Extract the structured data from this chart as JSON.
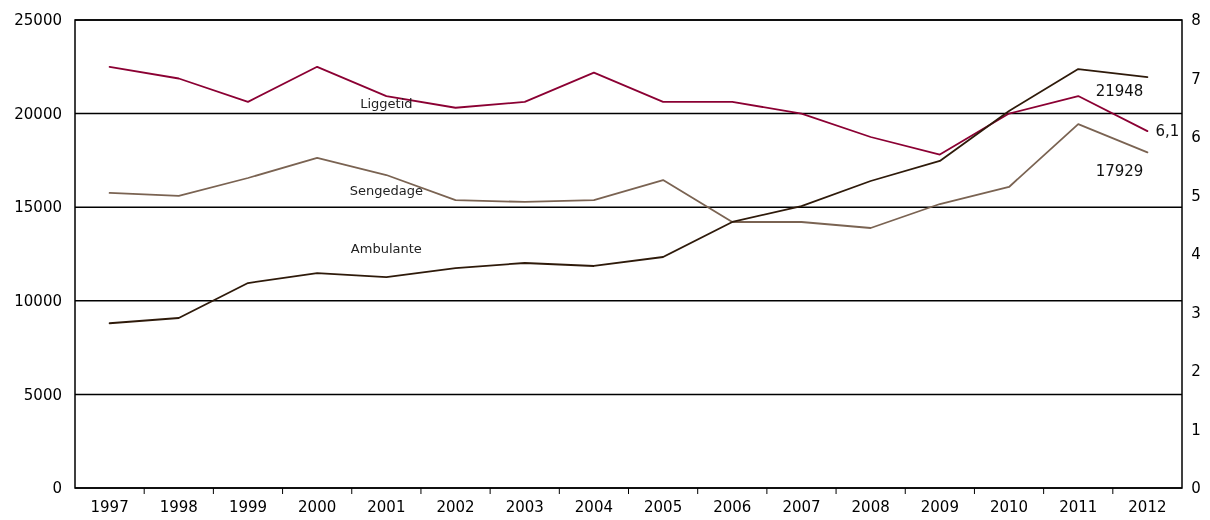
{
  "chart_data": {
    "type": "line",
    "categories": [
      "1997",
      "1998",
      "1999",
      "2000",
      "2001",
      "2002",
      "2003",
      "2004",
      "2005",
      "2006",
      "2007",
      "2008",
      "2009",
      "2010",
      "2011",
      "2012"
    ],
    "series": [
      {
        "name": "Liggetid",
        "color": "#8b0033",
        "axis": "y2",
        "values": [
          7.2,
          7.0,
          6.6,
          7.2,
          6.7,
          6.5,
          6.6,
          7.1,
          6.6,
          6.6,
          6.4,
          6.0,
          5.7,
          6.4,
          6.7,
          6.1
        ],
        "value_labels": [
          null,
          null,
          null,
          null,
          null,
          null,
          null,
          null,
          null,
          null,
          null,
          null,
          null,
          null,
          null,
          "6,1"
        ]
      },
      {
        "name": "Sengedage",
        "color": "#7a6352",
        "values": [
          15760,
          15600,
          16560,
          17630,
          16720,
          15380,
          15280,
          15380,
          16450,
          14210,
          14210,
          13890,
          15170,
          16080,
          19440,
          17929
        ],
        "value_labels": [
          null,
          null,
          null,
          null,
          null,
          null,
          null,
          null,
          null,
          null,
          null,
          null,
          null,
          null,
          null,
          "17929"
        ]
      },
      {
        "name": "Ambulante",
        "color": "#2e1a0a",
        "values": [
          8800,
          9080,
          10950,
          11480,
          11270,
          11750,
          12020,
          11860,
          12340,
          14210,
          15060,
          16400,
          17470,
          20140,
          22380,
          21948
        ],
        "value_labels": [
          null,
          null,
          null,
          null,
          null,
          null,
          null,
          null,
          null,
          null,
          null,
          null,
          null,
          null,
          null,
          "21948"
        ]
      }
    ],
    "ylim": [
      0,
      25000
    ],
    "yticks": [
      0,
      5000,
      10000,
      15000,
      20000,
      25000
    ],
    "y2lim": [
      0,
      8
    ],
    "y2ticks": [
      0,
      1,
      2,
      3,
      4,
      5,
      6,
      7,
      8
    ],
    "grid": "y",
    "marker": "none",
    "line_style": "solid"
  }
}
